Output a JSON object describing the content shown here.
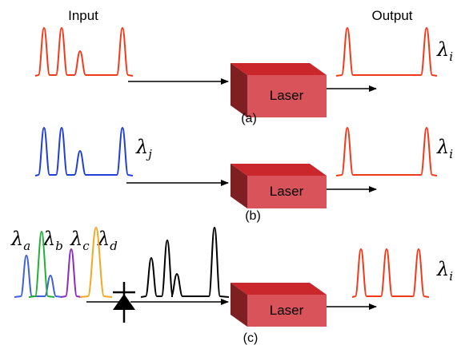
{
  "labels": {
    "input": "Input",
    "output": "Output",
    "panel_a": "(a)",
    "panel_b": "(b)",
    "panel_c": "(c)",
    "laser": "Laser",
    "lambda_i": "λ",
    "sub_i": "i",
    "lambda_j": "λ",
    "sub_j": "j",
    "lambda_a": "λ",
    "sub_a": "a",
    "lambda_b": "λ",
    "sub_b": "b",
    "lambda_c": "λ",
    "sub_c": "c",
    "lambda_d": "λ",
    "sub_d": "d"
  },
  "colors": {
    "red": "#f23a1a",
    "blue": "#1f3fd6",
    "black": "#000000",
    "laser_top": "#c9272c",
    "laser_front": "#d9545a",
    "laser_side": "#7e1f22",
    "wdm_a": "#3f5fd9",
    "wdm_b": "#20b035",
    "wdm_c": "#8a2cc0",
    "wdm_d": "#f5a623"
  }
}
